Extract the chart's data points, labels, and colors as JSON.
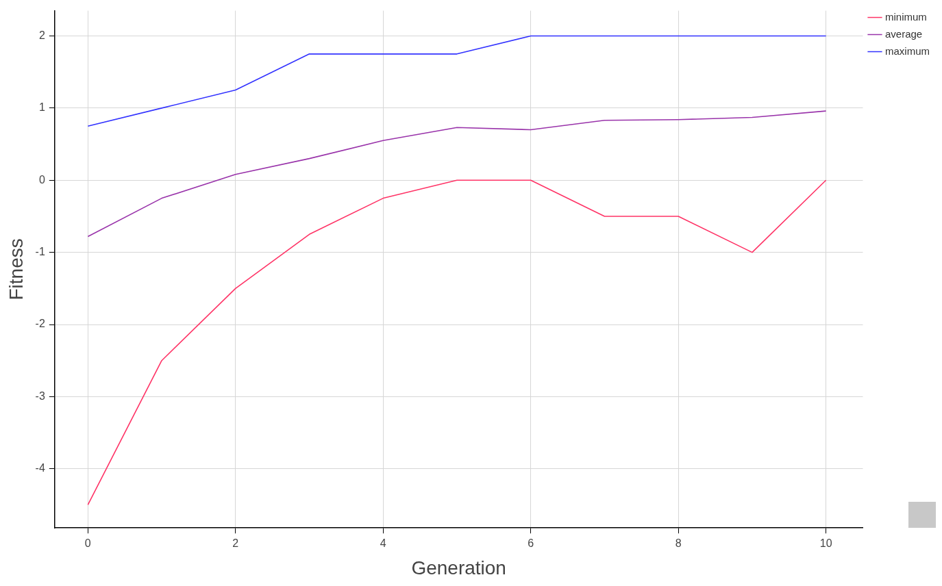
{
  "chart_data": {
    "type": "line",
    "xlabel": "Generation",
    "ylabel": "Fitness",
    "x": [
      0,
      1,
      2,
      3,
      4,
      5,
      6,
      7,
      8,
      9,
      10
    ],
    "series": [
      {
        "name": "minimum",
        "color": "#ff3366",
        "values": [
          -4.5,
          -2.5,
          -1.5,
          -0.75,
          -0.25,
          0,
          0,
          -0.5,
          -0.5,
          -1,
          0
        ]
      },
      {
        "name": "average",
        "color": "#9933aa",
        "values": [
          -0.78,
          -0.25,
          0.08,
          0.3,
          0.55,
          0.73,
          0.7,
          0.83,
          0.84,
          0.87,
          0.96
        ]
      },
      {
        "name": "maximum",
        "color": "#3333ff",
        "values": [
          0.75,
          1,
          1.25,
          1.75,
          1.75,
          1.75,
          2,
          2,
          2,
          2,
          2
        ]
      }
    ],
    "xlim": [
      -0.45,
      10.5
    ],
    "ylim": [
      -4.82,
      2.35
    ],
    "xticks": [
      0,
      2,
      4,
      6,
      8,
      10
    ],
    "yticks": [
      -4,
      -3,
      -2,
      -1,
      0,
      1,
      2
    ],
    "grid": true,
    "legend": "right",
    "marker": "none",
    "line_style": "solid"
  }
}
